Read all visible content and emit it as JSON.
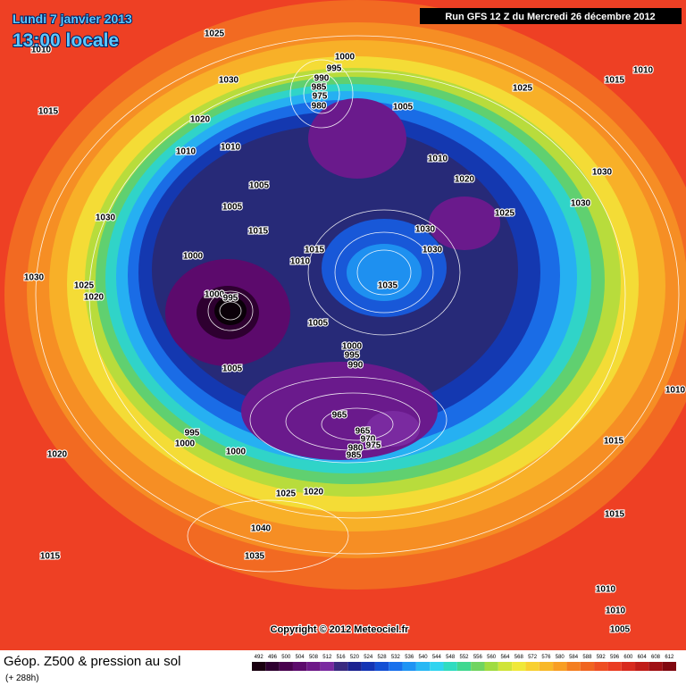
{
  "header": {
    "date": "Lundi 7 janvier 2013",
    "time": "13:00 locale",
    "run": "Run GFS 12 Z du Mercredi 26 décembre 2012"
  },
  "map": {
    "isobar_labels": [
      1025,
      1010,
      1030,
      1000,
      995,
      990,
      985,
      975,
      980,
      1005,
      1025,
      1010,
      1015,
      1015,
      1020,
      1010,
      1010,
      1010,
      1020,
      1030,
      1005,
      1005,
      1025,
      1030,
      1030,
      1015,
      1030,
      1030,
      1015,
      1000,
      1010,
      1030,
      1025,
      1020,
      1035,
      1000,
      995,
      1005,
      1000,
      995,
      990,
      1005,
      1010,
      965,
      965,
      970,
      975,
      980,
      985,
      995,
      1000,
      1000,
      1015,
      1020,
      1025,
      1020,
      1015,
      1040,
      1035,
      1015,
      1010,
      1010,
      1005
    ],
    "copyright": "Copyright © 2012 Meteociel.fr"
  },
  "footer": {
    "title": "Géop. Z500 & pression au sol",
    "lead": "(+ 288h)"
  },
  "scale": {
    "labels": [
      492,
      496,
      500,
      504,
      508,
      512,
      516,
      520,
      524,
      528,
      532,
      536,
      540,
      544,
      548,
      552,
      556,
      560,
      564,
      568,
      572,
      576,
      580,
      584,
      588,
      592,
      596,
      600,
      604,
      608,
      612
    ],
    "colors": [
      "#1a0010",
      "#2e0030",
      "#48004e",
      "#5c0a6c",
      "#6e1888",
      "#7a2aa0",
      "#3a2a80",
      "#1c2290",
      "#1434b4",
      "#1450d4",
      "#1870ec",
      "#1e94f4",
      "#28b8f4",
      "#30d4f0",
      "#30dcc0",
      "#40d890",
      "#70d460",
      "#a0dc40",
      "#d0e438",
      "#f0e838",
      "#f8d030",
      "#f8b828",
      "#f89e24",
      "#f47e20",
      "#f06420",
      "#ee4e22",
      "#ea3c22",
      "#d82a1e",
      "#c01c18",
      "#a01014",
      "#800810"
    ]
  }
}
